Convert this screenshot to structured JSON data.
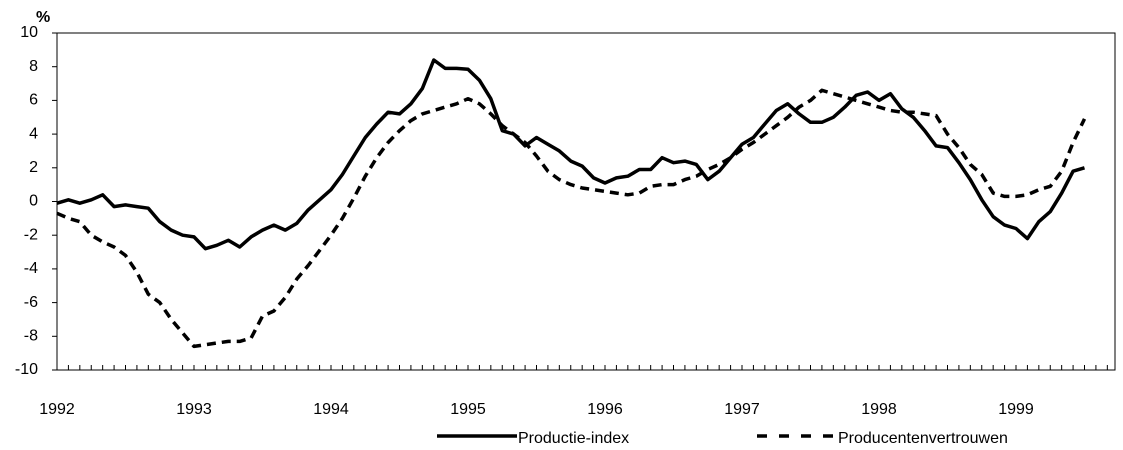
{
  "chart_data": {
    "type": "line",
    "y_label": "%",
    "categories": [
      "1992",
      null,
      null,
      null,
      null,
      null,
      null,
      null,
      null,
      null,
      null,
      null,
      "1993",
      null,
      null,
      null,
      null,
      null,
      null,
      null,
      null,
      null,
      null,
      null,
      "1994",
      null,
      null,
      null,
      null,
      null,
      null,
      null,
      null,
      null,
      null,
      null,
      "1995",
      null,
      null,
      null,
      null,
      null,
      null,
      null,
      null,
      null,
      null,
      null,
      "1996",
      null,
      null,
      null,
      null,
      null,
      null,
      null,
      null,
      null,
      null,
      null,
      "1997",
      null,
      null,
      null,
      null,
      null,
      null,
      null,
      null,
      null,
      null,
      null,
      "1998",
      null,
      null,
      null,
      null,
      null,
      null,
      null,
      null,
      null,
      null,
      null,
      "1999",
      null,
      null,
      null,
      null,
      null,
      null
    ],
    "series": [
      {
        "name": "Productie-index",
        "color": "#000000",
        "dash": false,
        "values": [
          -0.1,
          0.1,
          -0.1,
          0.1,
          0.4,
          -0.3,
          -0.2,
          -0.3,
          -0.4,
          -1.2,
          -1.7,
          -2.0,
          -2.1,
          -2.8,
          -2.6,
          -2.3,
          -2.7,
          -2.1,
          -1.7,
          -1.4,
          -1.7,
          -1.3,
          -0.5,
          0.1,
          0.7,
          1.6,
          2.7,
          3.8,
          4.6,
          5.3,
          5.2,
          5.8,
          6.7,
          8.4,
          7.9,
          7.9,
          7.85,
          7.2,
          6.1,
          4.2,
          4.0,
          3.3,
          3.8,
          3.4,
          3.0,
          2.4,
          2.1,
          1.4,
          1.1,
          1.4,
          1.5,
          1.9,
          1.9,
          2.6,
          2.3,
          2.4,
          2.2,
          1.3,
          1.8,
          2.6,
          3.4,
          3.8,
          4.6,
          5.4,
          5.8,
          5.2,
          4.7,
          4.7,
          5.0,
          5.6,
          6.3,
          6.5,
          6.0,
          6.4,
          5.5,
          5.0,
          4.2,
          3.3,
          3.2,
          2.3,
          1.3,
          0.1,
          -0.9,
          -1.4,
          -1.6,
          -2.2,
          -1.2,
          -0.6,
          0.5,
          1.8,
          2.0
        ]
      },
      {
        "name": "Producentenvertrouwen",
        "color": "#000000",
        "dash": true,
        "values": [
          -0.7,
          -1.0,
          -1.2,
          -2.0,
          -2.4,
          -2.7,
          -3.2,
          -4.2,
          -5.5,
          -6.0,
          -7.0,
          -7.8,
          -8.6,
          -8.5,
          -8.4,
          -8.3,
          -8.3,
          -8.1,
          -6.8,
          -6.5,
          -5.7,
          -4.6,
          -3.8,
          -2.9,
          -2.0,
          -1.0,
          0.2,
          1.5,
          2.6,
          3.5,
          4.2,
          4.8,
          5.2,
          5.4,
          5.6,
          5.8,
          6.1,
          5.8,
          5.2,
          4.5,
          4.0,
          3.5,
          2.7,
          1.8,
          1.3,
          1.0,
          0.8,
          0.7,
          0.6,
          0.5,
          0.4,
          0.5,
          0.9,
          1.0,
          1.0,
          1.3,
          1.5,
          1.9,
          2.2,
          2.6,
          3.1,
          3.5,
          4.0,
          4.5,
          5.0,
          5.6,
          6.0,
          6.6,
          6.4,
          6.2,
          6.0,
          5.8,
          5.6,
          5.4,
          5.3,
          5.3,
          5.2,
          5.1,
          4.0,
          3.2,
          2.2,
          1.6,
          0.5,
          0.3,
          0.3,
          0.4,
          0.7,
          0.9,
          1.8,
          3.5,
          4.9
        ]
      }
    ],
    "ylim": [
      -10,
      10
    ],
    "yticks": [
      -10,
      -8,
      -6,
      -4,
      -2,
      0,
      2,
      4,
      6,
      8,
      10
    ],
    "grid": false,
    "legend": "bottom"
  }
}
